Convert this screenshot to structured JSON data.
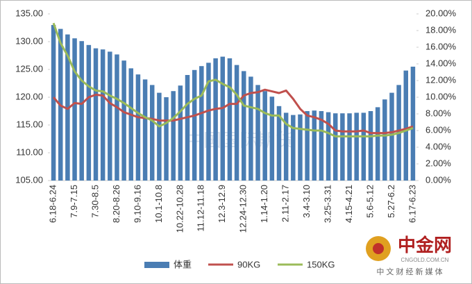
{
  "chart_data": {
    "type": "bar_line",
    "categories": [
      "6.18-6.24",
      null,
      null,
      "7.9-7.15",
      null,
      null,
      "7.30-8.5",
      null,
      null,
      "8.20-8.26",
      null,
      null,
      "9.10-9.16",
      null,
      null,
      "10.1-10.8",
      null,
      null,
      "10.22-10.28",
      null,
      null,
      "11.12-11.18",
      null,
      null,
      "12.3-12.9",
      null,
      null,
      "12.24-12.30",
      null,
      null,
      "1.14-1.20",
      null,
      null,
      "2.11-2.17",
      null,
      null,
      "3.4-3.10",
      null,
      null,
      "3.25-3.31",
      null,
      null,
      "4.15-4.21",
      null,
      null,
      "5.6-5.12",
      null,
      null,
      "5.27-6.2",
      null,
      null,
      "6.17-6.23"
    ],
    "series": [
      {
        "name": "体重",
        "color": "#4a7db3",
        "kind": "bar",
        "axis": "y",
        "values": [
          133,
          132.3,
          131.3,
          130.6,
          130.1,
          129.4,
          128.8,
          128.6,
          128.2,
          127.7,
          126.6,
          125.2,
          124.1,
          123.2,
          122.2,
          120.8,
          120,
          121.1,
          122.1,
          124,
          124.9,
          125.6,
          126.2,
          127,
          127.3,
          127,
          125.8,
          124.7,
          123.7,
          122.2,
          121.1,
          120.1,
          118.4,
          117.2,
          116.8,
          116.9,
          117.5,
          117.6,
          117.5,
          117.3,
          117.1,
          117.1,
          117.1,
          117.2,
          117.2,
          117.5,
          118.2,
          119.6,
          120.8,
          122.2,
          124.8,
          125.5
        ]
      },
      {
        "name": "90KG",
        "color": "#c0504d",
        "kind": "line",
        "axis": "y2",
        "values": [
          10,
          9,
          8.6,
          9.3,
          9.2,
          10,
          10.3,
          10.2,
          9.3,
          8.8,
          8.2,
          7.9,
          7.6,
          7.5,
          7.4,
          7.2,
          7.2,
          7.2,
          7.4,
          7.6,
          7.8,
          8.1,
          8.4,
          8.6,
          8.7,
          9.2,
          9.2,
          10.2,
          10.5,
          10.6,
          10.9,
          10.7,
          10.5,
          10.8,
          9.8,
          8.6,
          7.8,
          7.6,
          7.3,
          6.8,
          6.0,
          5.9,
          5.9,
          5.9,
          6.0,
          5.7,
          5.7,
          5.7,
          5.8,
          6.0,
          6.2,
          6.5
        ]
      },
      {
        "name": "150KG",
        "color": "#9bbb59",
        "kind": "line",
        "axis": "y2",
        "values": [
          18.9,
          16.5,
          15,
          13.1,
          12,
          11.3,
          10.8,
          10.7,
          10.2,
          9.8,
          9.3,
          8.7,
          8.1,
          7.6,
          7.2,
          6.5,
          6.9,
          7.5,
          8.3,
          9.2,
          9.8,
          10.2,
          11.9,
          12.1,
          11.6,
          11.2,
          10.3,
          9,
          8.8,
          8.6,
          8.1,
          7.8,
          7.8,
          6.8,
          6.3,
          6.2,
          6.1,
          6.0,
          6.0,
          5.7,
          5.3,
          5.3,
          5.3,
          5.3,
          5.3,
          5.3,
          5.4,
          5.4,
          5.5,
          5.7,
          6.0,
          6.3
        ]
      }
    ],
    "ylim": [
      105,
      135
    ],
    "yticks": [
      {
        "value": 105,
        "label": "105.00"
      },
      {
        "value": 110,
        "label": "110.00"
      },
      {
        "value": 115,
        "label": "115.00"
      },
      {
        "value": 120,
        "label": "120.00"
      },
      {
        "value": 125,
        "label": "125.00"
      },
      {
        "value": 130,
        "label": "130.00"
      },
      {
        "value": 135,
        "label": "135.00"
      }
    ],
    "y2lim": [
      0,
      20
    ],
    "y2ticks": [
      {
        "value": 0,
        "label": "0.00%"
      },
      {
        "value": 2,
        "label": "2.00%"
      },
      {
        "value": 4,
        "label": "4.00%"
      },
      {
        "value": 6,
        "label": "6.00%"
      },
      {
        "value": 8,
        "label": "8.00%"
      },
      {
        "value": 10,
        "label": "10.00%"
      },
      {
        "value": 12,
        "label": "12.00%"
      },
      {
        "value": 14,
        "label": "14.00%"
      },
      {
        "value": 16,
        "label": "16.00%"
      },
      {
        "value": 18,
        "label": "18.00%"
      },
      {
        "value": 20,
        "label": "20.00%"
      }
    ],
    "watermark": "中国国际期货",
    "logo": {
      "name": "中金网",
      "url": "CNGOLD.COM.CN",
      "slogan": "中 文 财 经 新 媒 体"
    }
  }
}
